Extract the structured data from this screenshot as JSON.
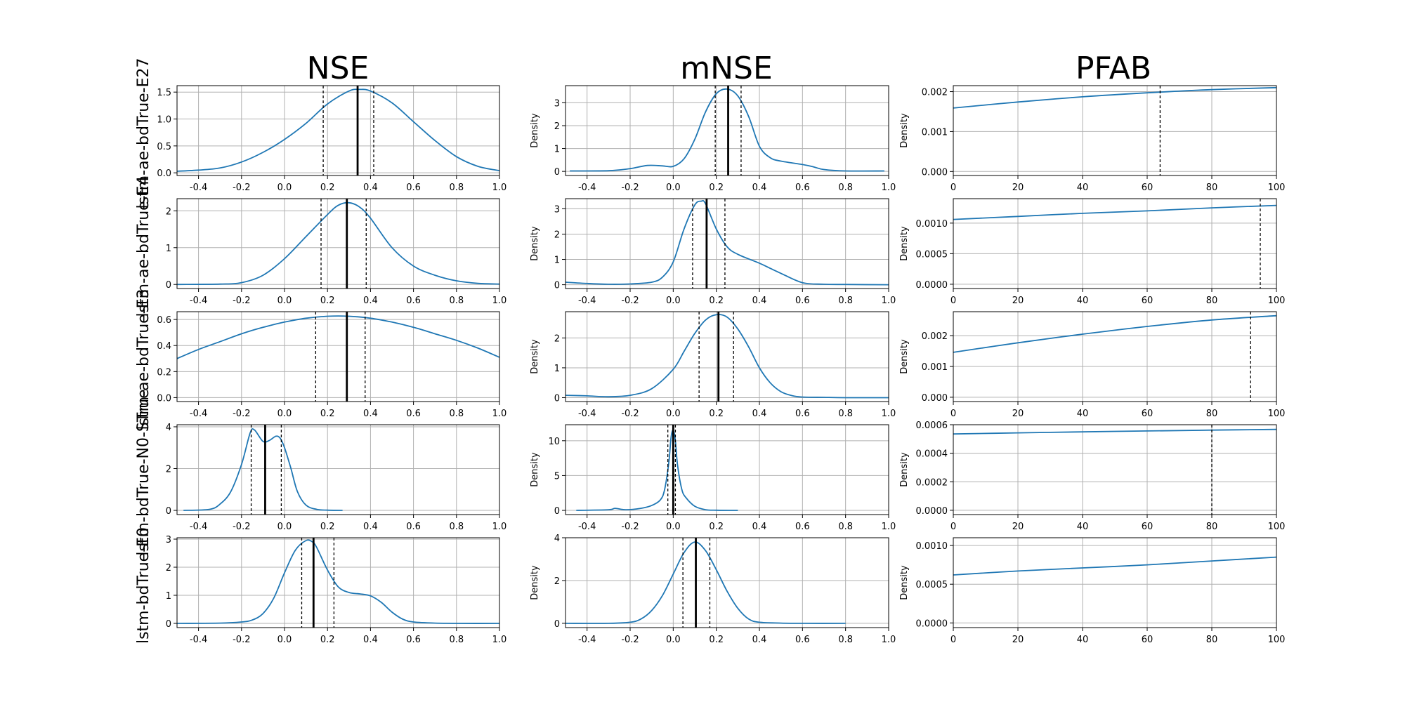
{
  "column_titles": [
    "NSE",
    "mNSE",
    "PFAB"
  ],
  "row_labels": [
    "lstm-ae-bdTrue-E27",
    "lstm-ae-bdTrue-E4",
    "lstm-ae-bdTrue-E3",
    "lstm-bdTrue-N0-STrue",
    "lstm-bdTrue-E0"
  ],
  "ylabel": "Density",
  "colors": {
    "line": "#1f77b4",
    "grid": "#b0b0b0",
    "marker": "#000000"
  },
  "chart_data": [
    {
      "type": "line",
      "row": 0,
      "col": 0,
      "xlim": [
        -0.5,
        1.0
      ],
      "ylim": [
        -0.05,
        1.62
      ],
      "xticks": [
        -0.4,
        -0.2,
        0.0,
        0.2,
        0.4,
        0.6,
        0.8,
        1.0
      ],
      "yticks": [
        0.0,
        0.5,
        1.0,
        1.5
      ],
      "x": [
        -0.5,
        -0.4,
        -0.3,
        -0.2,
        -0.1,
        0.0,
        0.1,
        0.2,
        0.3,
        0.35,
        0.4,
        0.5,
        0.6,
        0.7,
        0.8,
        0.9,
        1.0
      ],
      "y": [
        0.03,
        0.05,
        0.09,
        0.2,
        0.38,
        0.62,
        0.92,
        1.28,
        1.52,
        1.55,
        1.52,
        1.3,
        0.95,
        0.6,
        0.3,
        0.12,
        0.04
      ],
      "median": 0.34,
      "dashed": [
        0.18,
        0.415
      ]
    },
    {
      "type": "line",
      "row": 0,
      "col": 1,
      "xlim": [
        -0.5,
        1.0
      ],
      "ylim": [
        -0.18,
        3.75
      ],
      "xticks": [
        -0.4,
        -0.2,
        0.0,
        0.2,
        0.4,
        0.6,
        0.8,
        1.0
      ],
      "yticks": [
        0,
        1,
        2,
        3
      ],
      "x": [
        -0.48,
        -0.3,
        -0.2,
        -0.12,
        -0.05,
        0.0,
        0.05,
        0.1,
        0.15,
        0.2,
        0.25,
        0.3,
        0.35,
        0.4,
        0.45,
        0.5,
        0.6,
        0.65,
        0.7,
        0.8,
        0.98
      ],
      "y": [
        0.02,
        0.03,
        0.12,
        0.26,
        0.24,
        0.22,
        0.55,
        1.4,
        2.6,
        3.4,
        3.6,
        3.3,
        2.4,
        1.1,
        0.6,
        0.45,
        0.3,
        0.2,
        0.08,
        0.02,
        0.02
      ],
      "median": 0.255,
      "dashed": [
        0.195,
        0.315
      ]
    },
    {
      "type": "line",
      "row": 0,
      "col": 2,
      "xlim": [
        0,
        100
      ],
      "ylim": [
        -0.0001,
        0.00215
      ],
      "xticks": [
        0,
        20,
        40,
        60,
        80,
        100
      ],
      "yticks": [
        0.0,
        0.001,
        0.002
      ],
      "ytick_labels": [
        "0.000",
        "0.001",
        "0.002"
      ],
      "x": [
        0,
        20,
        40,
        60,
        80,
        100
      ],
      "y": [
        0.00159,
        0.00174,
        0.00187,
        0.00197,
        0.00205,
        0.0021
      ],
      "median": null,
      "dashed": [
        64
      ]
    },
    {
      "type": "line",
      "row": 1,
      "col": 0,
      "xlim": [
        -0.5,
        1.0
      ],
      "ylim": [
        -0.11,
        2.33
      ],
      "xticks": [
        -0.4,
        -0.2,
        0.0,
        0.2,
        0.4,
        0.6,
        0.8,
        1.0
      ],
      "yticks": [
        0,
        1,
        2
      ],
      "x": [
        -0.5,
        -0.3,
        -0.2,
        -0.1,
        0.0,
        0.1,
        0.2,
        0.25,
        0.3,
        0.35,
        0.4,
        0.5,
        0.6,
        0.7,
        0.8,
        0.9,
        1.0
      ],
      "y": [
        0.0,
        0.01,
        0.05,
        0.25,
        0.7,
        1.3,
        1.9,
        2.15,
        2.22,
        2.1,
        1.8,
        1.0,
        0.5,
        0.25,
        0.1,
        0.03,
        0.01
      ],
      "median": 0.29,
      "dashed": [
        0.17,
        0.38
      ]
    },
    {
      "type": "line",
      "row": 1,
      "col": 1,
      "xlim": [
        -0.5,
        1.0
      ],
      "ylim": [
        -0.15,
        3.4
      ],
      "xticks": [
        -0.4,
        -0.2,
        0.0,
        0.2,
        0.4,
        0.6,
        0.8,
        1.0
      ],
      "yticks": [
        0,
        1,
        2,
        3
      ],
      "x": [
        -0.5,
        -0.4,
        -0.3,
        -0.2,
        -0.1,
        -0.05,
        0.0,
        0.05,
        0.1,
        0.13,
        0.15,
        0.2,
        0.25,
        0.3,
        0.4,
        0.45,
        0.5,
        0.6,
        0.7,
        0.8,
        1.0
      ],
      "y": [
        0.1,
        0.05,
        0.02,
        0.03,
        0.1,
        0.3,
        0.9,
        2.2,
        3.15,
        3.3,
        3.2,
        2.2,
        1.5,
        1.2,
        0.85,
        0.65,
        0.45,
        0.08,
        0.02,
        0.01,
        0.0
      ],
      "median": 0.155,
      "dashed": [
        0.09,
        0.24
      ]
    },
    {
      "type": "line",
      "row": 1,
      "col": 2,
      "xlim": [
        0,
        100
      ],
      "ylim": [
        -7e-05,
        0.0014
      ],
      "xticks": [
        0,
        20,
        40,
        60,
        80,
        100
      ],
      "yticks": [
        0.0,
        0.0005,
        0.001
      ],
      "ytick_labels": [
        "0.0000",
        "0.0005",
        "0.0010"
      ],
      "x": [
        0,
        20,
        40,
        60,
        80,
        100
      ],
      "y": [
        0.00106,
        0.00111,
        0.00116,
        0.0012,
        0.00125,
        0.00129
      ],
      "median": null,
      "dashed": [
        95
      ]
    },
    {
      "type": "line",
      "row": 2,
      "col": 0,
      "xlim": [
        -0.5,
        1.0
      ],
      "ylim": [
        -0.03,
        0.66
      ],
      "xticks": [
        -0.4,
        -0.2,
        0.0,
        0.2,
        0.4,
        0.6,
        0.8,
        1.0
      ],
      "yticks": [
        0.0,
        0.2,
        0.4,
        0.6
      ],
      "x": [
        -0.5,
        -0.4,
        -0.3,
        -0.2,
        -0.1,
        0.0,
        0.1,
        0.2,
        0.3,
        0.4,
        0.5,
        0.6,
        0.7,
        0.8,
        0.9,
        1.0
      ],
      "y": [
        0.3,
        0.37,
        0.43,
        0.49,
        0.54,
        0.58,
        0.61,
        0.625,
        0.625,
        0.61,
        0.58,
        0.54,
        0.49,
        0.44,
        0.38,
        0.31
      ],
      "median": 0.29,
      "dashed": [
        0.145,
        0.375
      ]
    },
    {
      "type": "line",
      "row": 2,
      "col": 1,
      "xlim": [
        -0.5,
        1.0
      ],
      "ylim": [
        -0.13,
        2.88
      ],
      "xticks": [
        -0.4,
        -0.2,
        0.0,
        0.2,
        0.4,
        0.6,
        0.8,
        1.0
      ],
      "yticks": [
        0,
        1,
        2
      ],
      "x": [
        -0.5,
        -0.4,
        -0.3,
        -0.2,
        -0.1,
        0.0,
        0.05,
        0.1,
        0.15,
        0.2,
        0.25,
        0.3,
        0.35,
        0.4,
        0.45,
        0.5,
        0.55,
        0.6,
        0.7,
        0.8,
        1.0
      ],
      "y": [
        0.08,
        0.06,
        0.03,
        0.08,
        0.3,
        0.95,
        1.55,
        2.15,
        2.6,
        2.78,
        2.7,
        2.3,
        1.7,
        1.0,
        0.5,
        0.2,
        0.07,
        0.02,
        0.01,
        0.0,
        0.0
      ],
      "median": 0.21,
      "dashed": [
        0.12,
        0.28
      ]
    },
    {
      "type": "line",
      "row": 2,
      "col": 2,
      "xlim": [
        0,
        100
      ],
      "ylim": [
        -0.00014,
        0.00278
      ],
      "xticks": [
        0,
        20,
        40,
        60,
        80,
        100
      ],
      "yticks": [
        0.0,
        0.001,
        0.002
      ],
      "ytick_labels": [
        "0.000",
        "0.001",
        "0.002"
      ],
      "x": [
        0,
        20,
        40,
        60,
        80,
        100
      ],
      "y": [
        0.00146,
        0.00177,
        0.00205,
        0.0023,
        0.00251,
        0.00265
      ],
      "median": null,
      "dashed": [
        92
      ]
    },
    {
      "type": "line",
      "row": 3,
      "col": 0,
      "xlim": [
        -0.5,
        1.0
      ],
      "ylim": [
        -0.2,
        4.1
      ],
      "xticks": [
        -0.4,
        -0.2,
        0.0,
        0.2,
        0.4,
        0.6,
        0.8,
        1.0
      ],
      "yticks": [
        0,
        2,
        4
      ],
      "x": [
        -0.47,
        -0.35,
        -0.3,
        -0.25,
        -0.2,
        -0.16,
        -0.14,
        -0.1,
        -0.07,
        -0.04,
        -0.02,
        0.0,
        0.03,
        0.06,
        0.1,
        0.15,
        0.2,
        0.27
      ],
      "y": [
        0.0,
        0.05,
        0.3,
        0.9,
        2.2,
        3.7,
        3.85,
        3.3,
        3.35,
        3.55,
        3.45,
        3.0,
        2.0,
        0.9,
        0.25,
        0.05,
        0.01,
        0.0
      ],
      "median": -0.09,
      "dashed": [
        -0.155,
        -0.015
      ]
    },
    {
      "type": "line",
      "row": 3,
      "col": 1,
      "xlim": [
        -0.5,
        1.0
      ],
      "ylim": [
        -0.6,
        12.3
      ],
      "xticks": [
        -0.4,
        -0.2,
        0.0,
        0.2,
        0.4,
        0.6,
        0.8,
        1.0
      ],
      "yticks": [
        0,
        5,
        10
      ],
      "x": [
        -0.45,
        -0.3,
        -0.27,
        -0.22,
        -0.15,
        -0.1,
        -0.06,
        -0.04,
        -0.02,
        -0.01,
        0.0,
        0.01,
        0.02,
        0.04,
        0.06,
        0.1,
        0.15,
        0.2,
        0.3
      ],
      "y": [
        0.0,
        0.1,
        0.3,
        0.1,
        0.3,
        0.7,
        1.5,
        3.0,
        7.0,
        10.5,
        11.5,
        10.0,
        6.5,
        3.0,
        1.8,
        0.6,
        0.1,
        0.02,
        0.0
      ],
      "median": 0.0,
      "dashed": [
        -0.025,
        0.01
      ]
    },
    {
      "type": "line",
      "row": 3,
      "col": 2,
      "xlim": [
        0,
        100
      ],
      "ylim": [
        -3e-05,
        0.0006
      ],
      "xticks": [
        0,
        20,
        40,
        60,
        80,
        100
      ],
      "yticks": [
        0.0,
        0.0002,
        0.0004,
        0.0006
      ],
      "ytick_labels": [
        "0.0000",
        "0.0002",
        "0.0004",
        "0.0006"
      ],
      "x": [
        0,
        20,
        40,
        60,
        80,
        100
      ],
      "y": [
        0.000535,
        0.000543,
        0.00055,
        0.000556,
        0.000562,
        0.000567
      ],
      "median": null,
      "dashed": [
        80
      ]
    },
    {
      "type": "line",
      "row": 4,
      "col": 0,
      "xlim": [
        -0.5,
        1.0
      ],
      "ylim": [
        -0.15,
        3.05
      ],
      "xticks": [
        -0.4,
        -0.2,
        0.0,
        0.2,
        0.4,
        0.6,
        0.8,
        1.0
      ],
      "yticks": [
        0,
        1,
        2,
        3
      ],
      "x": [
        -0.5,
        -0.3,
        -0.2,
        -0.15,
        -0.1,
        -0.05,
        0.0,
        0.05,
        0.1,
        0.13,
        0.15,
        0.2,
        0.25,
        0.3,
        0.35,
        0.4,
        0.45,
        0.5,
        0.55,
        0.6,
        0.7,
        0.8,
        1.0
      ],
      "y": [
        0.0,
        0.01,
        0.05,
        0.12,
        0.35,
        0.9,
        1.8,
        2.6,
        2.95,
        2.9,
        2.7,
        1.9,
        1.3,
        1.1,
        1.05,
        0.98,
        0.75,
        0.4,
        0.15,
        0.05,
        0.01,
        0.0,
        0.0
      ],
      "median": 0.135,
      "dashed": [
        0.08,
        0.23
      ]
    },
    {
      "type": "line",
      "row": 4,
      "col": 1,
      "xlim": [
        -0.5,
        1.0
      ],
      "ylim": [
        -0.2,
        4.0
      ],
      "xticks": [
        -0.4,
        -0.2,
        0.0,
        0.2,
        0.4,
        0.6,
        0.8,
        1.0
      ],
      "yticks": [
        0,
        2,
        4
      ],
      "x": [
        -0.5,
        -0.3,
        -0.2,
        -0.15,
        -0.1,
        -0.05,
        0.0,
        0.05,
        0.1,
        0.15,
        0.2,
        0.25,
        0.3,
        0.35,
        0.4,
        0.5,
        0.6,
        0.8
      ],
      "y": [
        0.0,
        0.0,
        0.05,
        0.2,
        0.6,
        1.3,
        2.3,
        3.3,
        3.8,
        3.4,
        2.5,
        1.5,
        0.7,
        0.2,
        0.05,
        0.01,
        0.0,
        0.0
      ],
      "median": 0.105,
      "dashed": [
        0.045,
        0.17
      ]
    },
    {
      "type": "line",
      "row": 4,
      "col": 2,
      "xlim": [
        0,
        100
      ],
      "ylim": [
        -6e-05,
        0.0011
      ],
      "xticks": [
        0,
        20,
        40,
        60,
        80,
        100
      ],
      "yticks": [
        0.0,
        0.0005,
        0.001
      ],
      "ytick_labels": [
        "0.0000",
        "0.0005",
        "0.0010"
      ],
      "x": [
        0,
        20,
        40,
        60,
        80,
        100
      ],
      "y": [
        0.00062,
        0.00067,
        0.00071,
        0.00075,
        0.0008,
        0.00085
      ],
      "median": null,
      "dashed": []
    }
  ]
}
